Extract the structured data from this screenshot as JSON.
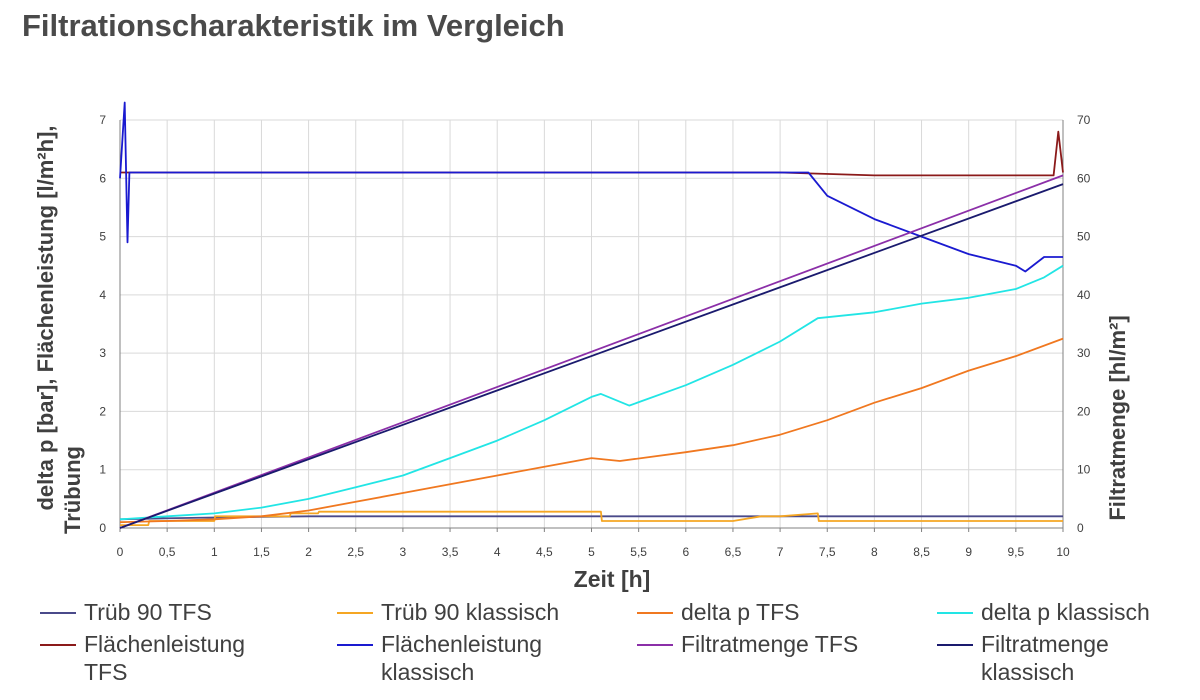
{
  "title": "Filtrationscharakteristik im Vergleich",
  "chart_data": {
    "type": "line",
    "xlabel": "Zeit [h]",
    "ylabel_left_line1": "delta p [bar], Flächenleistung [l/m²h],",
    "ylabel_left_line2": "Trübung",
    "ylabel_right": "Filtratmenge [hl/m²]",
    "xlim": [
      0,
      10
    ],
    "ylim_left": [
      0,
      7
    ],
    "ylim_right": [
      0,
      70
    ],
    "x_ticks": [
      "0",
      "0,5",
      "1",
      "1,5",
      "2",
      "2,5",
      "3",
      "3,5",
      "4",
      "4,5",
      "5",
      "5,5",
      "6",
      "6,5",
      "7",
      "7,5",
      "8",
      "8,5",
      "9",
      "9,5",
      "10"
    ],
    "y_ticks_left": [
      "0",
      "1",
      "2",
      "3",
      "4",
      "5",
      "6",
      "7"
    ],
    "y_ticks_right": [
      "0",
      "10",
      "20",
      "30",
      "40",
      "50",
      "60",
      "70"
    ],
    "grid": true,
    "legend_position": "bottom",
    "series": [
      {
        "name": "Trüb 90 TFS",
        "color": "#4a4a8a",
        "axis": "left",
        "x": [
          0,
          0.3,
          0.6,
          1.0,
          1.5,
          2.0,
          2.5,
          3.0,
          4.0,
          5.0,
          6.0,
          7.0,
          8.0,
          9.0,
          10.0
        ],
        "y": [
          0.15,
          0.16,
          0.17,
          0.18,
          0.19,
          0.2,
          0.2,
          0.2,
          0.2,
          0.2,
          0.2,
          0.2,
          0.2,
          0.2,
          0.2
        ]
      },
      {
        "name": "Trüb 90 klassisch",
        "color": "#f5a623",
        "axis": "left",
        "x": [
          0,
          0.3,
          0.31,
          1.0,
          1.01,
          1.8,
          1.81,
          2.1,
          2.11,
          5.1,
          5.11,
          6.5,
          6.8,
          7.0,
          7.4,
          7.41,
          10.0
        ],
        "y": [
          0.05,
          0.05,
          0.12,
          0.12,
          0.2,
          0.2,
          0.25,
          0.25,
          0.28,
          0.28,
          0.12,
          0.12,
          0.2,
          0.2,
          0.25,
          0.12,
          0.12
        ]
      },
      {
        "name": "delta p TFS",
        "color": "#f07820",
        "axis": "left",
        "x": [
          0,
          0.5,
          1.0,
          1.5,
          2.0,
          2.5,
          3.0,
          3.5,
          4.0,
          4.5,
          5.0,
          5.3,
          6.0,
          6.5,
          7.0,
          7.5,
          8.0,
          8.5,
          9.0,
          9.5,
          10.0
        ],
        "y": [
          0.1,
          0.12,
          0.15,
          0.2,
          0.3,
          0.45,
          0.6,
          0.75,
          0.9,
          1.05,
          1.2,
          1.15,
          1.3,
          1.42,
          1.6,
          1.85,
          2.15,
          2.4,
          2.7,
          2.95,
          3.25
        ]
      },
      {
        "name": "delta p klassisch",
        "color": "#22e5e5",
        "axis": "left",
        "x": [
          0,
          0.5,
          1.0,
          1.5,
          2.0,
          2.5,
          3.0,
          3.5,
          4.0,
          4.5,
          5.0,
          5.1,
          5.4,
          6.0,
          6.5,
          7.0,
          7.4,
          8.0,
          8.5,
          9.0,
          9.5,
          9.8,
          10.0
        ],
        "y": [
          0.15,
          0.2,
          0.25,
          0.35,
          0.5,
          0.7,
          0.9,
          1.2,
          1.5,
          1.85,
          2.25,
          2.3,
          2.1,
          2.45,
          2.8,
          3.2,
          3.6,
          3.7,
          3.85,
          3.95,
          4.1,
          4.3,
          4.5
        ]
      },
      {
        "name": "Flächenleistung TFS",
        "color": "#8b1a1a",
        "axis": "left",
        "x": [
          0,
          0.5,
          1.0,
          1.5,
          2.0,
          3.0,
          4.0,
          5.0,
          6.0,
          7.0,
          8.0,
          9.0,
          9.9,
          9.95,
          10.0
        ],
        "y": [
          6.1,
          6.1,
          6.1,
          6.1,
          6.1,
          6.1,
          6.1,
          6.1,
          6.1,
          6.1,
          6.05,
          6.05,
          6.05,
          6.8,
          6.1
        ]
      },
      {
        "name": "Flächenleistung klassisch",
        "color": "#1a1ad0",
        "axis": "left",
        "x": [
          0,
          0.05,
          0.08,
          0.1,
          0.15,
          0.5,
          1.0,
          2.0,
          3.0,
          4.0,
          5.0,
          6.0,
          7.0,
          7.3,
          7.5,
          8.0,
          8.5,
          9.0,
          9.5,
          9.6,
          9.8,
          10.0
        ],
        "y": [
          6.0,
          7.3,
          4.9,
          6.1,
          6.1,
          6.1,
          6.1,
          6.1,
          6.1,
          6.1,
          6.1,
          6.1,
          6.1,
          6.1,
          5.7,
          5.3,
          5.0,
          4.7,
          4.5,
          4.4,
          4.65,
          4.65
        ]
      },
      {
        "name": "Filtratmenge TFS",
        "color": "#8b2fa8",
        "axis": "right",
        "x": [
          0,
          10
        ],
        "y": [
          0,
          60.5
        ]
      },
      {
        "name": "Filtratmenge klassisch",
        "color": "#1a1a6e",
        "axis": "right",
        "x": [
          0,
          10
        ],
        "y": [
          0,
          59
        ]
      }
    ]
  }
}
